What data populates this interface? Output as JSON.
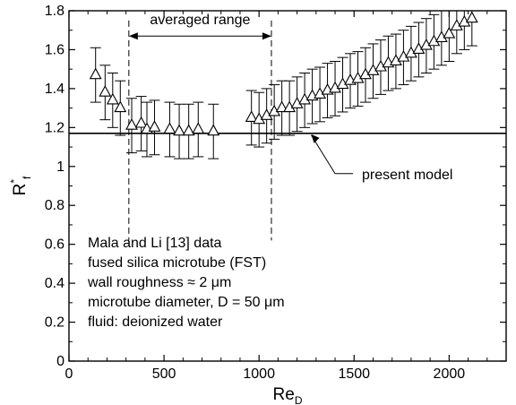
{
  "chart_data": {
    "type": "scatter",
    "xlim": [
      0,
      2300
    ],
    "ylim": [
      0,
      1.8
    ],
    "grid": false,
    "x_ticks": [
      "0",
      "500",
      "1000",
      "1500",
      "2000"
    ],
    "y_ticks": [
      "0",
      "0.2",
      "0.4",
      "0.6",
      "0.8",
      "1",
      "1.2",
      "1.4",
      "1.6",
      "1.8"
    ],
    "xlabel": {
      "main": "Re",
      "sub": "D"
    },
    "ylabel": {
      "main": "R",
      "sup": "*",
      "sub": "f"
    },
    "series": [
      {
        "marker": "open-triangle",
        "error_bar": 0.14,
        "x": [
          140,
          190,
          230,
          270,
          330,
          380,
          410,
          450,
          530,
          580,
          630,
          680,
          760,
          960,
          1000,
          1040,
          1080,
          1120,
          1160,
          1200,
          1240,
          1280,
          1320,
          1360,
          1400,
          1440,
          1480,
          1520,
          1560,
          1600,
          1640,
          1680,
          1720,
          1760,
          1800,
          1840,
          1880,
          1920,
          1960,
          2000,
          2040,
          2080,
          2120
        ],
        "y": [
          1.47,
          1.38,
          1.34,
          1.3,
          1.21,
          1.22,
          1.19,
          1.2,
          1.19,
          1.18,
          1.18,
          1.19,
          1.18,
          1.25,
          1.24,
          1.26,
          1.28,
          1.3,
          1.3,
          1.32,
          1.34,
          1.36,
          1.37,
          1.39,
          1.4,
          1.42,
          1.44,
          1.45,
          1.47,
          1.49,
          1.51,
          1.53,
          1.54,
          1.56,
          1.58,
          1.6,
          1.62,
          1.64,
          1.66,
          1.68,
          1.72,
          1.74,
          1.76
        ]
      }
    ],
    "reference_line": {
      "y": 1.17,
      "label": "present model"
    },
    "range_markers": {
      "x": [
        315,
        1065
      ],
      "y_top": 1.75,
      "y_bottom": 0.62,
      "label": "averaged range"
    },
    "annotation_lines": [
      "Mala and Li [13] data",
      "fused silica microtube (FST)",
      "wall roughness ≈ 2 μm",
      "microtube diameter, D = 50 μm",
      "fluid: deionized water"
    ],
    "arrow_pointer": {
      "from": [
        1400,
        1.0
      ],
      "to": [
        1275,
        1.17
      ]
    }
  }
}
